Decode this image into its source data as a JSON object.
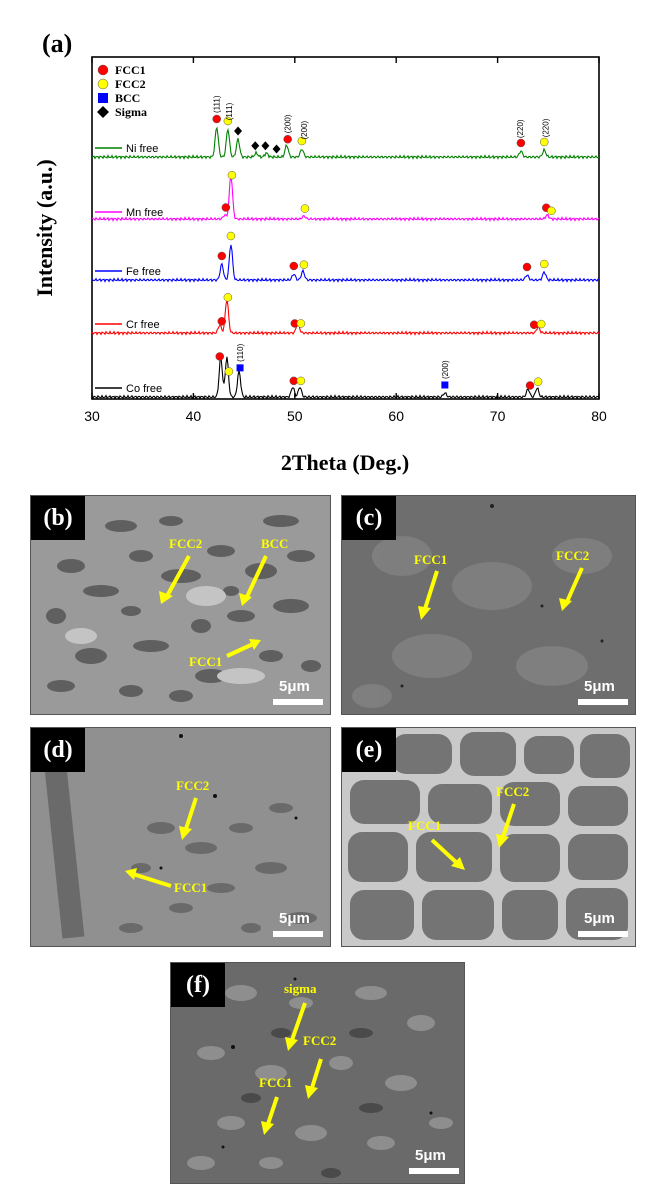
{
  "xrd": {
    "panel_label": "(a)",
    "xlabel": "2Theta (Deg.)",
    "ylabel": "Intensity (a.u.)",
    "legend": [
      {
        "symbol": "circle",
        "color": "#ff0000",
        "label": "FCC1"
      },
      {
        "symbol": "circle",
        "color": "#ffff00",
        "label": "FCC2"
      },
      {
        "symbol": "square",
        "color": "#0000ff",
        "label": "BCC"
      },
      {
        "symbol": "diamond",
        "color": "#000000",
        "label": "Sigma"
      }
    ]
  },
  "chart_data": {
    "type": "line",
    "xlabel": "2Theta (Deg.)",
    "ylabel": "Intensity (a.u.)",
    "xlim": [
      30,
      80
    ],
    "xticks": [
      "30",
      "40",
      "50",
      "60",
      "70",
      "80"
    ],
    "series": [
      {
        "name": "Ni free",
        "color": "#008000",
        "peaks": [
          {
            "x": 42.3,
            "h": 30
          },
          {
            "x": 43.4,
            "h": 28
          },
          {
            "x": 44.4,
            "h": 18
          },
          {
            "x": 46.2,
            "h": 4
          },
          {
            "x": 47.2,
            "h": 4
          },
          {
            "x": 49.2,
            "h": 12
          },
          {
            "x": 50.7,
            "h": 8
          },
          {
            "x": 72.3,
            "h": 6
          },
          {
            "x": 74.6,
            "h": 7
          }
        ],
        "markers": [
          {
            "x": 42.3,
            "type": "FCC1"
          },
          {
            "x": 43.4,
            "type": "FCC2"
          },
          {
            "x": 44.4,
            "type": "Sigma"
          },
          {
            "x": 46.1,
            "type": "Sigma"
          },
          {
            "x": 47.1,
            "type": "Sigma"
          },
          {
            "x": 48.2,
            "type": "Sigma"
          },
          {
            "x": 49.3,
            "type": "FCC1"
          },
          {
            "x": 50.7,
            "type": "FCC2"
          },
          {
            "x": 72.3,
            "type": "FCC1"
          },
          {
            "x": 74.6,
            "type": "FCC2"
          }
        ],
        "planes": [
          {
            "x": 42.3,
            "label": "(111)"
          },
          {
            "x": 43.5,
            "label": "(111)"
          },
          {
            "x": 49.3,
            "label": "(200)"
          },
          {
            "x": 50.9,
            "label": "(200)"
          },
          {
            "x": 72.2,
            "label": "(220)"
          },
          {
            "x": 74.7,
            "label": "(220)"
          }
        ]
      },
      {
        "name": "Mn free",
        "color": "#ff00ff",
        "peaks": [
          {
            "x": 43.1,
            "h": 4
          },
          {
            "x": 43.7,
            "h": 44
          },
          {
            "x": 50.9,
            "h": 3
          },
          {
            "x": 74.9,
            "h": 4
          }
        ],
        "markers": [
          {
            "x": 43.2,
            "type": "FCC1"
          },
          {
            "x": 43.8,
            "type": "FCC2"
          },
          {
            "x": 51.0,
            "type": "FCC2"
          },
          {
            "x": 74.8,
            "type": "FCC1"
          },
          {
            "x": 75.3,
            "type": "FCC2"
          }
        ],
        "planes": []
      },
      {
        "name": "Fe free",
        "color": "#0000ff",
        "peaks": [
          {
            "x": 42.8,
            "h": 16
          },
          {
            "x": 43.7,
            "h": 36
          },
          {
            "x": 49.9,
            "h": 6
          },
          {
            "x": 50.8,
            "h": 9
          },
          {
            "x": 72.9,
            "h": 5
          },
          {
            "x": 74.6,
            "h": 8
          }
        ],
        "markers": [
          {
            "x": 42.8,
            "type": "FCC1"
          },
          {
            "x": 43.7,
            "type": "FCC2"
          },
          {
            "x": 49.9,
            "type": "FCC1"
          },
          {
            "x": 50.9,
            "type": "FCC2"
          },
          {
            "x": 72.9,
            "type": "FCC1"
          },
          {
            "x": 74.6,
            "type": "FCC2"
          }
        ],
        "planes": []
      },
      {
        "name": "Cr free",
        "color": "#ff0000",
        "peaks": [
          {
            "x": 42.6,
            "h": 8
          },
          {
            "x": 43.3,
            "h": 34
          },
          {
            "x": 50.3,
            "h": 10
          },
          {
            "x": 74.0,
            "h": 6
          }
        ],
        "markers": [
          {
            "x": 42.8,
            "type": "FCC1"
          },
          {
            "x": 43.4,
            "type": "FCC2"
          },
          {
            "x": 50.0,
            "type": "FCC1"
          },
          {
            "x": 50.6,
            "type": "FCC2"
          },
          {
            "x": 73.6,
            "type": "FCC1"
          },
          {
            "x": 74.3,
            "type": "FCC2"
          }
        ],
        "planes": []
      },
      {
        "name": "Co free",
        "color": "#000000",
        "peaks": [
          {
            "x": 42.7,
            "h": 40
          },
          {
            "x": 43.3,
            "h": 40
          },
          {
            "x": 44.5,
            "h": 26
          },
          {
            "x": 49.8,
            "h": 10
          },
          {
            "x": 50.5,
            "h": 10
          },
          {
            "x": 64.8,
            "h": 4
          },
          {
            "x": 73.0,
            "h": 8
          },
          {
            "x": 73.9,
            "h": 9
          }
        ],
        "markers": [
          {
            "x": 42.6,
            "type": "FCC1"
          },
          {
            "x": 43.5,
            "type": "FCC2"
          },
          {
            "x": 44.6,
            "type": "BCC"
          },
          {
            "x": 49.9,
            "type": "FCC1"
          },
          {
            "x": 50.6,
            "type": "FCC2"
          },
          {
            "x": 64.8,
            "type": "BCC"
          },
          {
            "x": 73.2,
            "type": "FCC1"
          },
          {
            "x": 74.0,
            "type": "FCC2"
          }
        ],
        "planes": [
          {
            "x": 44.6,
            "label": "(110)"
          },
          {
            "x": 64.8,
            "label": "(200)"
          }
        ]
      }
    ]
  },
  "micrographs": {
    "b": {
      "label": "(b)",
      "scale": "5μm",
      "phases": [
        "FCC2",
        "BCC",
        "FCC1"
      ]
    },
    "c": {
      "label": "(c)",
      "scale": "5μm",
      "phases": [
        "FCC1",
        "FCC2"
      ]
    },
    "d": {
      "label": "(d)",
      "scale": "5μm",
      "phases": [
        "FCC2",
        "FCC1"
      ]
    },
    "e": {
      "label": "(e)",
      "scale": "5μm",
      "phases": [
        "FCC2",
        "FCC1"
      ]
    },
    "f": {
      "label": "(f)",
      "scale": "5μm",
      "phases": [
        "sigma",
        "FCC2",
        "FCC1"
      ]
    }
  },
  "colors": {
    "annotation": "#ffff00",
    "micrograph_bg": "#8c8c8c"
  }
}
